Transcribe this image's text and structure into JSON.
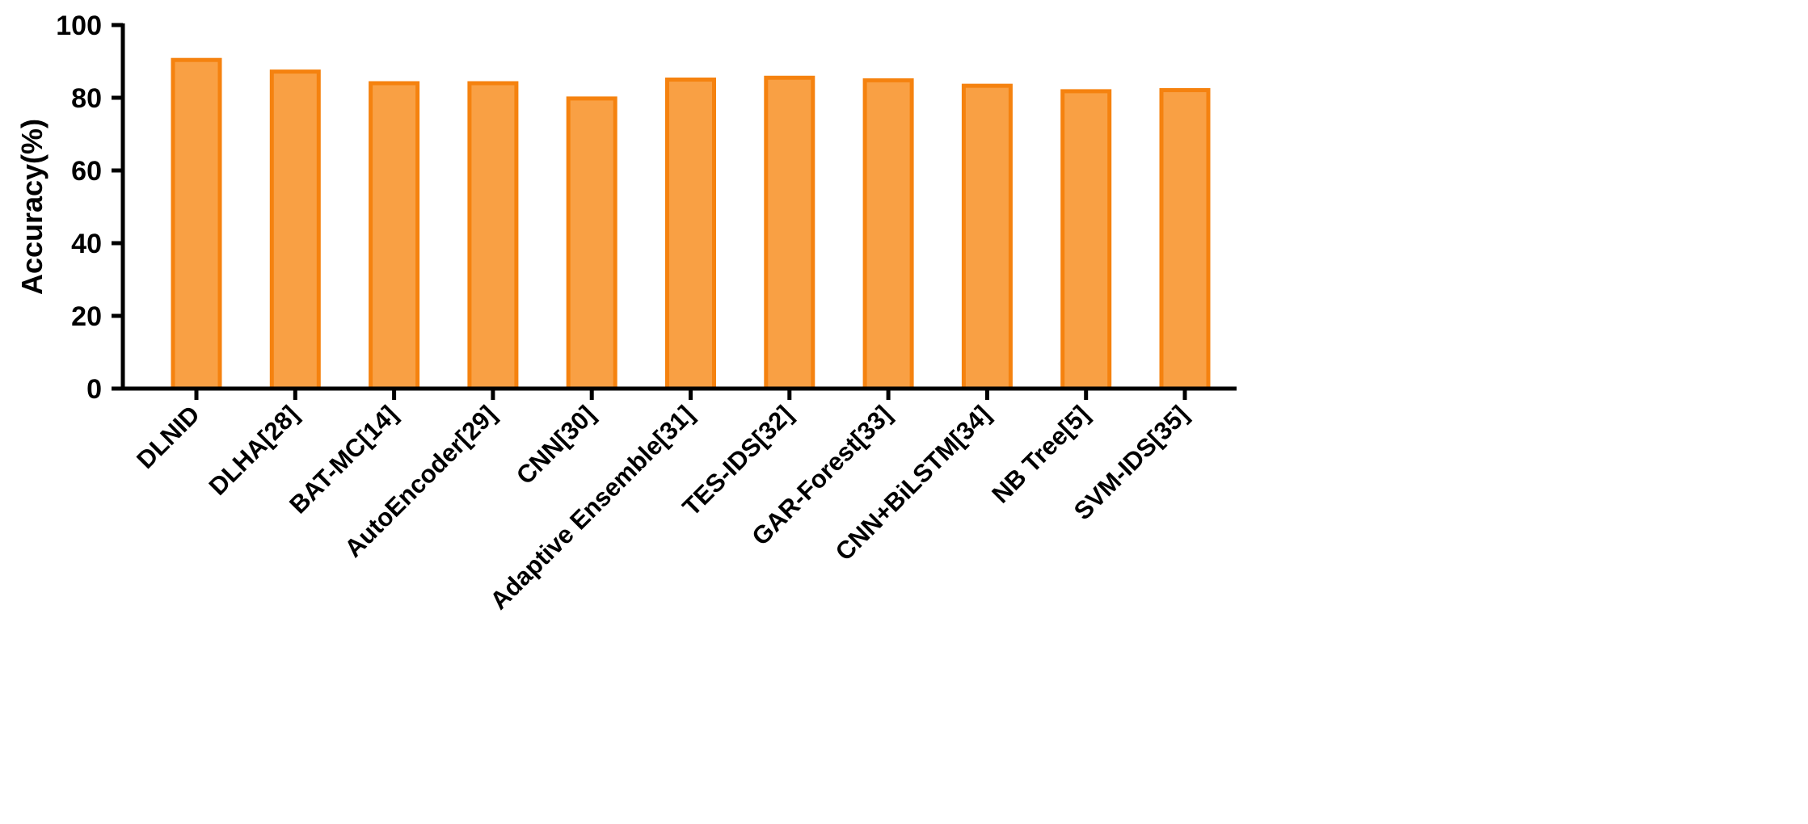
{
  "chart_data": {
    "type": "bar",
    "ylabel": "Accuracy(%)",
    "xlabel": "",
    "ylim": [
      0,
      100
    ],
    "yticks": [
      0,
      20,
      40,
      60,
      80,
      100
    ],
    "categories": [
      "DLNID",
      "DLHA[28]",
      "BAT-MC[14]",
      "AutoEncoder[29]",
      "CNN[30]",
      "Adaptive Ensemble[31]",
      "TES-IDS[32]",
      "GAR-Forest[33]",
      "CNN+BiLSTM[34]",
      "NB Tree[5]",
      "SVM-IDS[35]"
    ],
    "values": [
      90.4,
      87.2,
      84.0,
      84.0,
      79.8,
      85.0,
      85.5,
      84.8,
      83.3,
      81.8,
      82.1
    ],
    "grid": false,
    "legend": "none",
    "colors": {
      "bar_fill": "#F9A044",
      "bar_stroke": "#F5820F",
      "axis": "#000000"
    }
  }
}
